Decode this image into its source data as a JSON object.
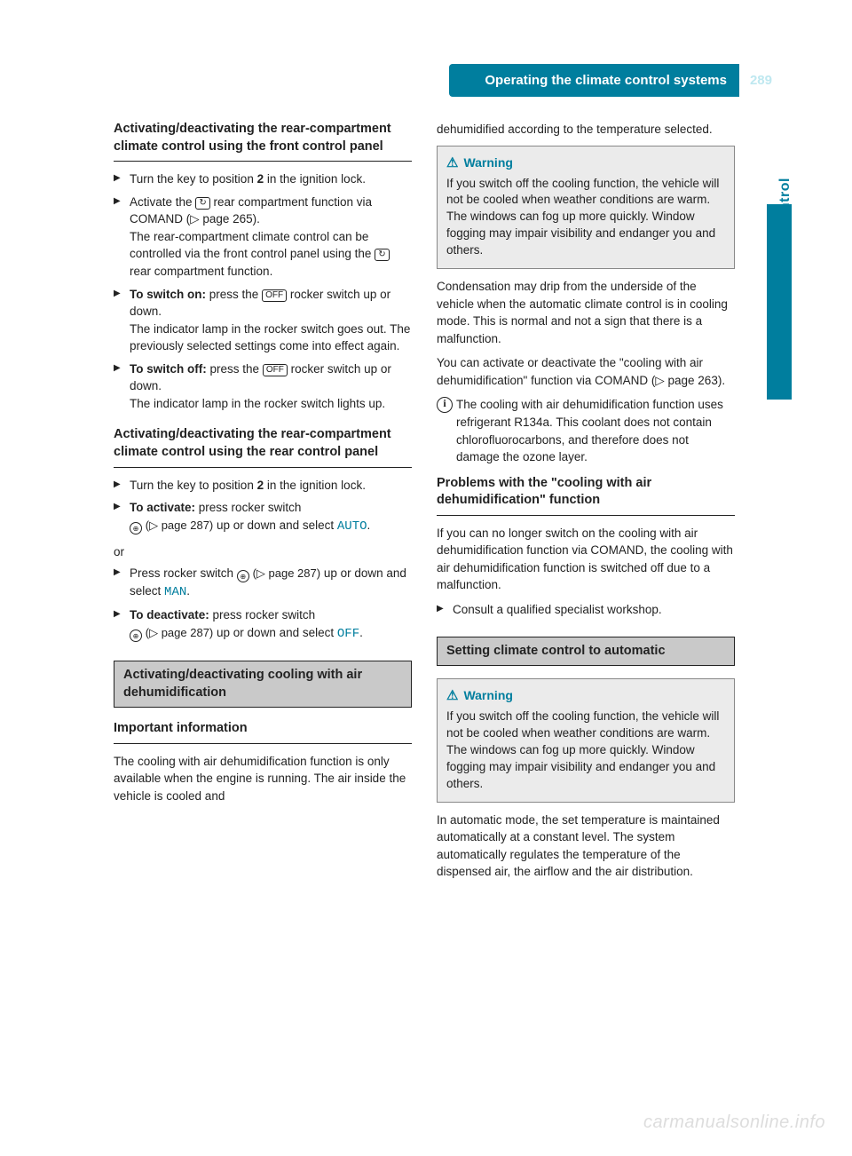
{
  "header": {
    "title": "Operating the climate control systems",
    "page": "289"
  },
  "sidebar": {
    "label": "Climate control"
  },
  "icons": {
    "rear": "↻",
    "off": "OFF",
    "rocker": "⊕",
    "warn": "⚠"
  },
  "colors": {
    "brand": "#007e9e",
    "brand_light": "#bfe8f0",
    "box_bg": "#c9c9c9",
    "warn_bg": "#ebebeb",
    "text": "#222222",
    "watermark": "#dddddd"
  },
  "typography": {
    "body_fontsize_pt": 10,
    "heading_fontsize_pt": 11,
    "sidebar_fontsize_pt": 12,
    "font_family": "Arial"
  },
  "left": {
    "sec1": {
      "heading": "Activating/deactivating the rear-compartment climate control using the front control panel",
      "items": [
        {
          "pre": "Turn the key to position",
          "bold": "2",
          "post": "in the ignition lock."
        },
        {
          "pre": "Activate the",
          "mid": "rear compartment function via COMAND (▷ page 265).",
          "line2": "The rear-compartment climate control can be controlled via the front control panel using the",
          "post": "rear compartment function."
        },
        {
          "bold": "To switch on:",
          "pre": "press the",
          "post": "rocker switch up or down.",
          "line2": "The indicator lamp in the rocker switch goes out. The previously selected settings come into effect again."
        },
        {
          "bold": "To switch off:",
          "pre": "press the",
          "post": "rocker switch up or down.",
          "line2": "The indicator lamp in the rocker switch lights up."
        }
      ]
    },
    "sec2": {
      "heading": "Activating/deactivating the rear-compartment climate control using the rear control panel",
      "or": "or",
      "items": [
        {
          "pre": "Turn the key to position",
          "bold": "2",
          "post": "in the ignition lock."
        },
        {
          "bold": "To activate:",
          "pre": "press rocker switch",
          "ref": "(▷ page 287)",
          "post": "up or down and select",
          "accent": "AUTO",
          "tail": "."
        },
        {
          "pre": "Press rocker switch",
          "ref": "(▷ page 287)",
          "post": "up or down and select",
          "accent": "MAN",
          "tail": "."
        },
        {
          "bold": "To deactivate:",
          "pre": "press rocker switch",
          "ref": "(▷ page 287)",
          "post": "up or down and select",
          "accent": "OFF",
          "tail": "."
        }
      ]
    },
    "sec3": {
      "box": "Activating/deactivating cooling with air dehumidification",
      "sub": "Important information",
      "body": "The cooling with air dehumidification function is only available when the engine is running. The air inside the vehicle is cooled and"
    }
  },
  "right": {
    "topline": "dehumidified according to the temperature selected.",
    "warn1": {
      "title": "Warning",
      "body": "If you switch off the cooling function, the vehicle will not be cooled when weather conditions are warm. The windows can fog up more quickly. Window fogging may impair visibility and endanger you and others."
    },
    "p1": "Condensation may drip from the underside of the vehicle when the automatic climate control is in cooling mode. This is normal and not a sign that there is a malfunction.",
    "p2": "You can activate or deactivate the \"cooling with air dehumidification\" function via COMAND (▷ page 263).",
    "info": "The cooling with air dehumidification function uses refrigerant R134a. This coolant does not contain chlorofluorocarbons, and therefore does not damage the ozone layer.",
    "sec2": {
      "heading": "Problems with the \"cooling with air dehumidification\" function",
      "body": "If you can no longer switch on the cooling with air dehumidification function via COMAND, the cooling with air dehumidification function is switched off due to a malfunction.",
      "step": "Consult a qualified specialist workshop."
    },
    "sec3": {
      "box": "Setting climate control to automatic",
      "body": "In automatic mode, the set temperature is maintained automatically at a constant level. The system automatically regulates the temperature of the dispensed air, the airflow and the air distribution."
    },
    "warn2": {
      "title": "Warning",
      "body": "If you switch off the cooling function, the vehicle will not be cooled when weather conditions are warm. The windows can fog up more quickly. Window fogging may impair visibility and endanger you and others."
    }
  },
  "watermark": "carmanualsonline.info"
}
